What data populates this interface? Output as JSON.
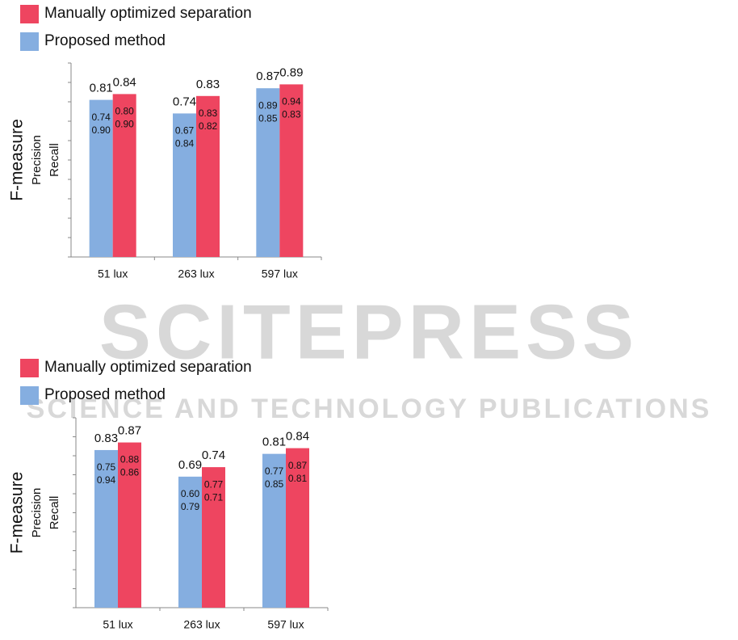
{
  "chart_data": [
    {
      "type": "bar",
      "ylabels": [
        "F-measure",
        "Precision",
        "Recall"
      ],
      "categories": [
        "51 lux",
        "263 lux",
        "597 lux"
      ],
      "ylim": [
        0,
        1
      ],
      "yticks": [
        0,
        0.1,
        0.2,
        0.3,
        0.4,
        0.5,
        0.6,
        0.7,
        0.8,
        0.9,
        1
      ],
      "series": [
        {
          "name": "Proposed method",
          "color": "#85aee0",
          "values": [
            0.81,
            0.74,
            0.87
          ],
          "precision": [
            0.74,
            0.67,
            0.89
          ],
          "precision_labels": [
            "0.74",
            "0.67",
            "0.89"
          ],
          "recall": [
            0.9,
            0.84,
            0.85
          ],
          "recall_labels": [
            "0.90",
            "0.84",
            "0.85"
          ]
        },
        {
          "name": "Manually optimized separation",
          "color": "#ee4560",
          "values": [
            0.84,
            0.83,
            0.89
          ],
          "precision": [
            0.8,
            0.83,
            0.94
          ],
          "precision_labels": [
            "0.80",
            "0.83",
            "0.94"
          ],
          "recall": [
            0.9,
            0.82,
            0.83
          ],
          "recall_labels": [
            "0.90",
            "0.82",
            "0.83"
          ]
        }
      ]
    },
    {
      "type": "bar",
      "ylabels": [
        "F-measure",
        "Precision",
        "Recall"
      ],
      "categories": [
        "51 lux",
        "263 lux",
        "597 lux"
      ],
      "ylim": [
        0,
        1
      ],
      "yticks": [
        0,
        0.1,
        0.2,
        0.3,
        0.4,
        0.5,
        0.6,
        0.7,
        0.8,
        0.9,
        1
      ],
      "series": [
        {
          "name": "Proposed method",
          "color": "#85aee0",
          "values": [
            0.83,
            0.69,
            0.81
          ],
          "precision": [
            0.75,
            0.6,
            0.77
          ],
          "precision_labels": [
            "0.75",
            "0.60",
            "0.77"
          ],
          "recall": [
            0.94,
            0.79,
            0.85
          ],
          "recall_labels": [
            "0.94",
            "0.79",
            "0.85"
          ]
        },
        {
          "name": "Manually optimized separation",
          "color": "#ee4560",
          "values": [
            0.87,
            0.74,
            0.84
          ],
          "precision": [
            0.88,
            0.77,
            0.87
          ],
          "precision_labels": [
            "0.88",
            "0.77",
            "0.87"
          ],
          "recall": [
            0.86,
            0.71,
            0.81
          ],
          "recall_labels": [
            "0.86",
            "0.71",
            "0.81"
          ]
        }
      ]
    }
  ],
  "watermark": {
    "title": "SCITEPRESS",
    "subtitle": "SCIENCE AND TECHNOLOGY PUBLICATIONS"
  }
}
